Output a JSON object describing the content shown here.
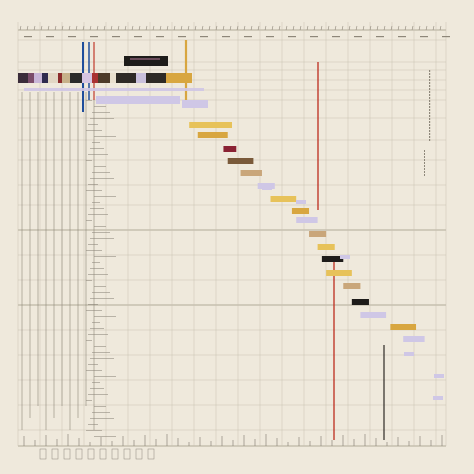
{
  "palette": {
    "paper": "#efe9dc",
    "grid": "#c9c1b1",
    "grid_strong": "#9c9482",
    "ink": "#2e2a26",
    "pencil": "#8e877a",
    "red_line": "#c0392b",
    "blue_line": "#1f4e9c",
    "lilac": "#cfc7e6",
    "ochre": "#d8a640",
    "gold": "#e7c25a",
    "tan": "#c9a67a",
    "brown": "#7a5a3a",
    "maroon": "#8a2233",
    "black": "#1e1c1a"
  },
  "chart_data": {
    "type": "gantt-like hand-drawn schedule",
    "rows": [
      {
        "start": 0.0,
        "end": 0.38,
        "color": "multi",
        "kind": "header-band"
      },
      {
        "start": 0.24,
        "end": 0.34,
        "color": "black",
        "kind": "block"
      },
      {
        "start": 0.2,
        "end": 0.36,
        "color": "lilac",
        "kind": "bar"
      },
      {
        "start": 0.36,
        "end": 0.42,
        "color": "lilac",
        "kind": "bar"
      },
      {
        "start": 0.4,
        "end": 0.5,
        "color": "gold",
        "kind": "bar"
      },
      {
        "start": 0.42,
        "end": 0.49,
        "color": "ochre",
        "kind": "bar"
      },
      {
        "start": 0.48,
        "end": 0.51,
        "color": "maroon",
        "kind": "bar"
      },
      {
        "start": 0.49,
        "end": 0.55,
        "color": "brown",
        "kind": "bar"
      },
      {
        "start": 0.52,
        "end": 0.57,
        "color": "tan",
        "kind": "bar"
      },
      {
        "start": 0.56,
        "end": 0.6,
        "color": "lilac",
        "kind": "bar"
      },
      {
        "start": 0.59,
        "end": 0.65,
        "color": "gold",
        "kind": "bar"
      },
      {
        "start": 0.64,
        "end": 0.68,
        "color": "ochre",
        "kind": "bar"
      },
      {
        "start": 0.65,
        "end": 0.7,
        "color": "lilac",
        "kind": "bar"
      },
      {
        "start": 0.68,
        "end": 0.72,
        "color": "tan",
        "kind": "bar"
      },
      {
        "start": 0.7,
        "end": 0.74,
        "color": "gold",
        "kind": "bar"
      },
      {
        "start": 0.71,
        "end": 0.76,
        "color": "black",
        "kind": "bar"
      },
      {
        "start": 0.72,
        "end": 0.78,
        "color": "gold",
        "kind": "bar"
      },
      {
        "start": 0.76,
        "end": 0.8,
        "color": "tan",
        "kind": "bar"
      },
      {
        "start": 0.78,
        "end": 0.82,
        "color": "black",
        "kind": "bar"
      },
      {
        "start": 0.8,
        "end": 0.86,
        "color": "lilac",
        "kind": "bar"
      },
      {
        "start": 0.87,
        "end": 0.93,
        "color": "ochre",
        "kind": "bar"
      },
      {
        "start": 0.9,
        "end": 0.95,
        "color": "lilac",
        "kind": "bar"
      }
    ]
  }
}
